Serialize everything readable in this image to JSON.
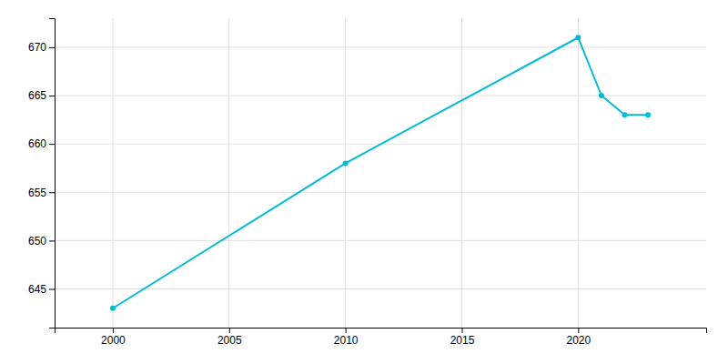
{
  "chart_data": {
    "type": "line",
    "x": [
      2000,
      2010,
      2020,
      2021,
      2022,
      2023
    ],
    "values": [
      643,
      658,
      671,
      665,
      663,
      663
    ],
    "color": "#00BCD4",
    "marker": "circle",
    "xlim": [
      1997.5,
      2025.5
    ],
    "ylim": [
      641,
      673
    ],
    "xticks": [
      2000,
      2005,
      2010,
      2015,
      2020
    ],
    "yticks": [
      645,
      650,
      655,
      660,
      665,
      670
    ],
    "grid": true
  }
}
